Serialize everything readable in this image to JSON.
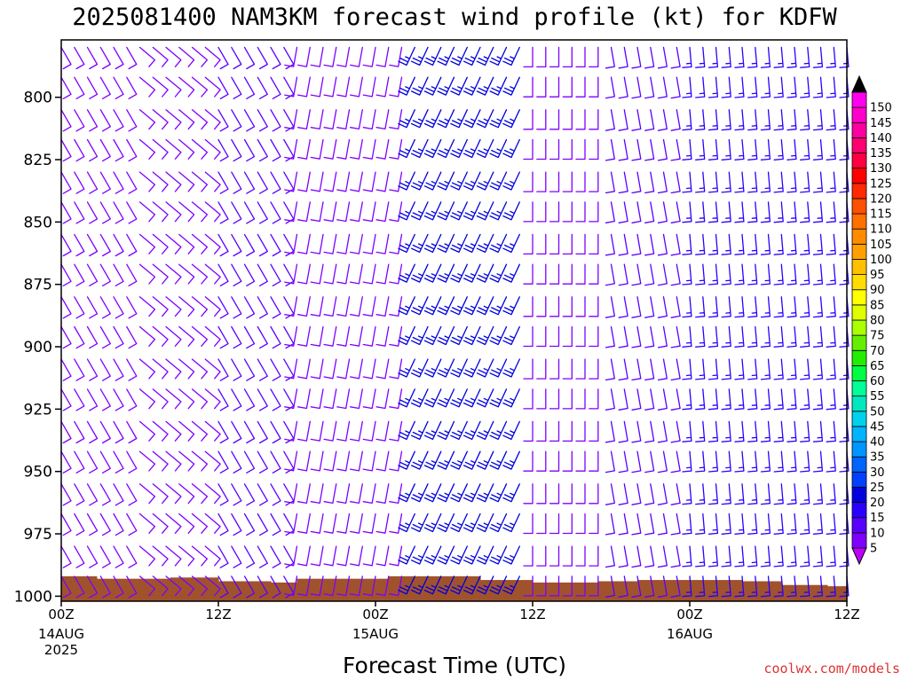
{
  "chart_data": {
    "type": "wind-barb-time-height",
    "title": "2025081400 NAM3KM forecast wind profile (kt) for KDFW",
    "xlabel": "Forecast Time (UTC)",
    "units": "kt",
    "y_axis": {
      "reversed": true,
      "range": [
        777,
        1002
      ],
      "ticks": [
        800,
        825,
        850,
        875,
        900,
        925,
        950,
        975,
        1000
      ]
    },
    "x_axis": {
      "range_hours": [
        0,
        60
      ],
      "ticks": [
        {
          "hour": 0,
          "label": "00Z",
          "date": "14AUG",
          "year": "2025"
        },
        {
          "hour": 12,
          "label": "12Z",
          "date": "",
          "year": ""
        },
        {
          "hour": 24,
          "label": "00Z",
          "date": "15AUG",
          "year": ""
        },
        {
          "hour": 36,
          "label": "12Z",
          "date": "",
          "year": ""
        },
        {
          "hour": 48,
          "label": "00Z",
          "date": "16AUG",
          "year": ""
        },
        {
          "hour": 60,
          "label": "12Z",
          "date": "",
          "year": ""
        }
      ]
    },
    "barb_time_step_hours": 1,
    "barb_levels": [
      780,
      792,
      805,
      817,
      830,
      842,
      855,
      867,
      880,
      892,
      905,
      917,
      930,
      942,
      955,
      967,
      980,
      992
    ],
    "wind_regimes": [
      {
        "hours": [
          0,
          6
        ],
        "direction_deg": 150,
        "speed_kt": 9
      },
      {
        "hours": [
          6,
          12
        ],
        "direction_deg": 130,
        "speed_kt": 9
      },
      {
        "hours": [
          12,
          18
        ],
        "direction_deg": 150,
        "speed_kt": 10
      },
      {
        "hours": [
          18,
          27
        ],
        "direction_deg": 190,
        "speed_kt": 9
      },
      {
        "hours": [
          27,
          36
        ],
        "direction_deg": 205,
        "speed_kt": 23
      },
      {
        "hours": [
          36,
          42
        ],
        "direction_deg": 180,
        "speed_kt": 9
      },
      {
        "hours": [
          42,
          48
        ],
        "direction_deg": 170,
        "speed_kt": 10
      },
      {
        "hours": [
          48,
          60
        ],
        "direction_deg": 175,
        "speed_kt": 17
      }
    ],
    "terrain_surface_pressure": [
      {
        "hours": [
          0,
          2.7
        ],
        "p": 992.0
      },
      {
        "hours": [
          2.7,
          8.3
        ],
        "p": 993.0
      },
      {
        "hours": [
          8.3,
          12
        ],
        "p": 992.5
      },
      {
        "hours": [
          12,
          16
        ],
        "p": 994.0
      },
      {
        "hours": [
          16,
          18
        ],
        "p": 994.5
      },
      {
        "hours": [
          18,
          25
        ],
        "p": 993.0
      },
      {
        "hours": [
          25,
          32
        ],
        "p": 992.0
      },
      {
        "hours": [
          32,
          36
        ],
        "p": 993.5
      },
      {
        "hours": [
          36,
          41
        ],
        "p": 994.5
      },
      {
        "hours": [
          41,
          44
        ],
        "p": 994.0
      },
      {
        "hours": [
          44,
          52
        ],
        "p": 993.5
      },
      {
        "hours": [
          52,
          55
        ],
        "p": 994.0
      },
      {
        "hours": [
          55,
          58.5
        ],
        "p": 995.5
      },
      {
        "hours": [
          58.5,
          60
        ],
        "p": 996.0
      }
    ],
    "terrain_color": "#a0522d",
    "colorbar": {
      "labels": [
        5,
        10,
        15,
        20,
        25,
        30,
        35,
        40,
        45,
        50,
        55,
        60,
        65,
        70,
        75,
        80,
        85,
        90,
        95,
        100,
        105,
        110,
        115,
        120,
        125,
        130,
        135,
        140,
        145,
        150
      ],
      "colors": [
        "#7f00ff",
        "#5a00ff",
        "#2a00ff",
        "#0000dd",
        "#0040ff",
        "#0064ff",
        "#0096ff",
        "#00b4ff",
        "#00d2ee",
        "#00e8c0",
        "#00ff99",
        "#00ff44",
        "#22ee00",
        "#66ee00",
        "#aaff00",
        "#ddff00",
        "#ffff00",
        "#ffdd00",
        "#ffc000",
        "#ffa000",
        "#ff8c00",
        "#ff7000",
        "#ff4f00",
        "#ff2a00",
        "#ff0000",
        "#ff0040",
        "#ff0070",
        "#ff00a0",
        "#ff00cc",
        "#ff00ee"
      ],
      "under_color": "#c000ff",
      "over_color": "#000000"
    },
    "credit": "coolwx.com/models"
  }
}
